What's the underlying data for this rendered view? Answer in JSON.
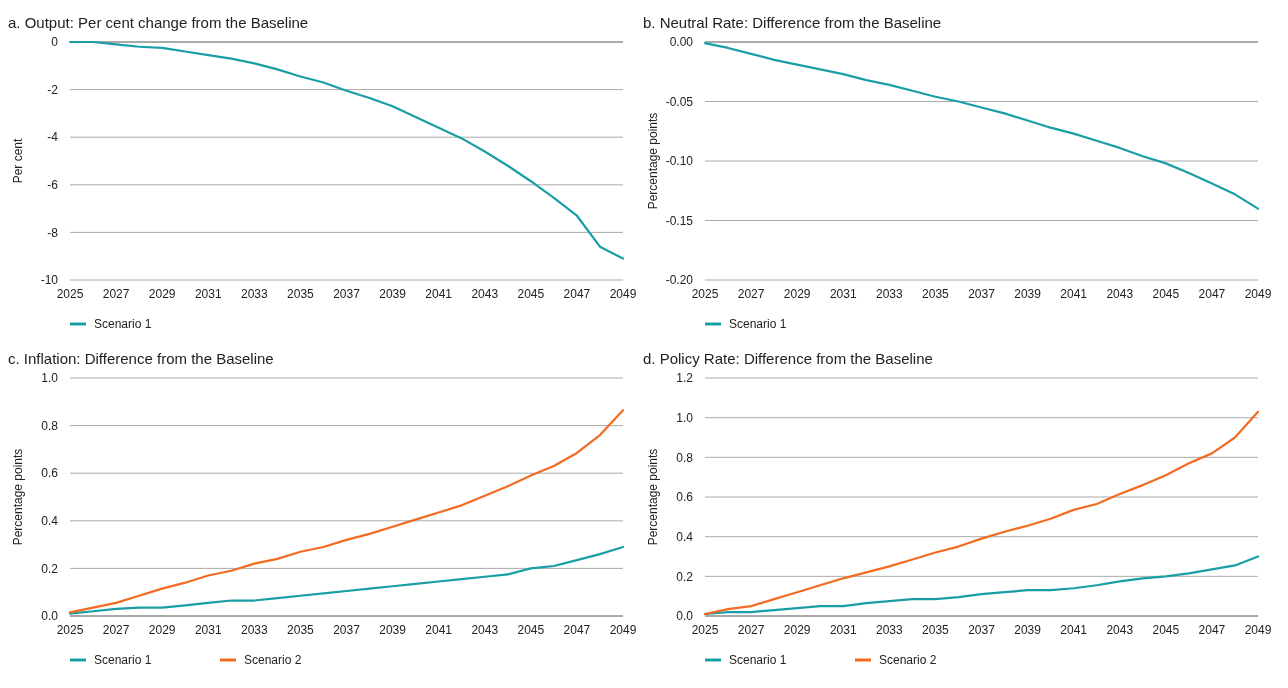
{
  "chart_data": [
    {
      "type": "line",
      "title": "a. Output: Per cent change from the Baseline",
      "ylabel": "Per cent",
      "x": [
        2025,
        2026,
        2027,
        2028,
        2029,
        2030,
        2031,
        2032,
        2033,
        2034,
        2035,
        2036,
        2037,
        2038,
        2039,
        2040,
        2041,
        2042,
        2043,
        2044,
        2045,
        2046,
        2047,
        2048,
        2049
      ],
      "xlim": [
        2025,
        2049
      ],
      "xticks": [
        2025,
        2027,
        2029,
        2031,
        2033,
        2035,
        2037,
        2039,
        2041,
        2043,
        2045,
        2047,
        2049
      ],
      "ylim": [
        -10,
        0
      ],
      "yticks": [
        -10,
        -8,
        -6,
        -4,
        -2,
        0
      ],
      "grid": "y",
      "legend": "bottom",
      "series": [
        {
          "name": "Scenario 1",
          "color": "#1a9ea6",
          "values": [
            0,
            0,
            -0.1,
            -0.2,
            -0.25,
            -0.4,
            -0.55,
            -0.7,
            -0.9,
            -1.15,
            -1.45,
            -1.7,
            -2.05,
            -2.35,
            -2.7,
            -3.15,
            -3.6,
            -4.05,
            -4.6,
            -5.2,
            -5.85,
            -6.55,
            -7.3,
            -8.6,
            -9.1
          ]
        }
      ]
    },
    {
      "type": "line",
      "title": "b. Neutral Rate: Difference from the Baseline",
      "ylabel": "Percentage points",
      "x": [
        2025,
        2026,
        2027,
        2028,
        2029,
        2030,
        2031,
        2032,
        2033,
        2034,
        2035,
        2036,
        2037,
        2038,
        2039,
        2040,
        2041,
        2042,
        2043,
        2044,
        2045,
        2046,
        2047,
        2048,
        2049
      ],
      "xlim": [
        2025,
        2049
      ],
      "xticks": [
        2025,
        2027,
        2029,
        2031,
        2033,
        2035,
        2037,
        2039,
        2041,
        2043,
        2045,
        2047,
        2049
      ],
      "ylim": [
        -0.2,
        0
      ],
      "yticks": [
        {
          "value": -0.2,
          "label": "-0.20"
        },
        {
          "value": -0.15,
          "label": "-0.15"
        },
        {
          "value": -0.1,
          "label": "-0.10"
        },
        {
          "value": -0.05,
          "label": "-0.05"
        },
        {
          "value": 0,
          "label": "0.00"
        }
      ],
      "grid": "y",
      "legend": "bottom",
      "series": [
        {
          "name": "Scenario 1",
          "color": "#1a9ea6",
          "values": [
            -0.001,
            -0.005,
            -0.01,
            -0.015,
            -0.019,
            -0.023,
            -0.027,
            -0.032,
            -0.036,
            -0.041,
            -0.046,
            -0.05,
            -0.055,
            -0.06,
            -0.066,
            -0.072,
            -0.077,
            -0.083,
            -0.089,
            -0.096,
            -0.102,
            -0.11,
            -0.119,
            -0.128,
            -0.14
          ]
        }
      ]
    },
    {
      "type": "line",
      "title": "c. Inflation: Difference from the Baseline",
      "ylabel": "Percentage points",
      "x": [
        2025,
        2026,
        2027,
        2028,
        2029,
        2030,
        2031,
        2032,
        2033,
        2034,
        2035,
        2036,
        2037,
        2038,
        2039,
        2040,
        2041,
        2042,
        2043,
        2044,
        2045,
        2046,
        2047,
        2048,
        2049
      ],
      "xlim": [
        2025,
        2049
      ],
      "xticks": [
        2025,
        2027,
        2029,
        2031,
        2033,
        2035,
        2037,
        2039,
        2041,
        2043,
        2045,
        2047,
        2049
      ],
      "ylim": [
        0,
        1
      ],
      "yticks": [
        {
          "value": 0,
          "label": "0.0"
        },
        0.2,
        0.4,
        0.6,
        0.8,
        {
          "value": 1,
          "label": "1.0"
        }
      ],
      "grid": "y",
      "legend": "bottom",
      "series": [
        {
          "name": "Scenario 1",
          "color": "#1a9ea6",
          "values": [
            0.01,
            0.02,
            0.03,
            0.035,
            0.035,
            0.045,
            0.055,
            0.065,
            0.065,
            0.075,
            0.085,
            0.095,
            0.105,
            0.115,
            0.125,
            0.135,
            0.145,
            0.155,
            0.165,
            0.175,
            0.2,
            0.21,
            0.235,
            0.26,
            0.29
          ]
        },
        {
          "name": "Scenario 2",
          "color": "#f26b21",
          "values": [
            0.015,
            0.035,
            0.055,
            0.085,
            0.115,
            0.14,
            0.17,
            0.19,
            0.22,
            0.24,
            0.27,
            0.29,
            0.32,
            0.345,
            0.375,
            0.405,
            0.435,
            0.465,
            0.505,
            0.545,
            0.59,
            0.63,
            0.685,
            0.76,
            0.865
          ]
        }
      ]
    },
    {
      "type": "line",
      "title": "d. Policy Rate: Difference from the Baseline",
      "ylabel": "Percentage points",
      "x": [
        2025,
        2026,
        2027,
        2028,
        2029,
        2030,
        2031,
        2032,
        2033,
        2034,
        2035,
        2036,
        2037,
        2038,
        2039,
        2040,
        2041,
        2042,
        2043,
        2044,
        2045,
        2046,
        2047,
        2048,
        2049
      ],
      "xlim": [
        2025,
        2049
      ],
      "xticks": [
        2025,
        2027,
        2029,
        2031,
        2033,
        2035,
        2037,
        2039,
        2041,
        2043,
        2045,
        2047,
        2049
      ],
      "ylim": [
        0,
        1.2
      ],
      "yticks": [
        {
          "value": 0,
          "label": "0.0"
        },
        0.2,
        0.4,
        0.6,
        0.8,
        {
          "value": 1,
          "label": "1.0"
        },
        1.2
      ],
      "grid": "y",
      "legend": "bottom",
      "series": [
        {
          "name": "Scenario 1",
          "color": "#1a9ea6",
          "values": [
            0.01,
            0.02,
            0.02,
            0.03,
            0.04,
            0.05,
            0.05,
            0.065,
            0.075,
            0.085,
            0.085,
            0.095,
            0.11,
            0.12,
            0.13,
            0.13,
            0.14,
            0.155,
            0.175,
            0.19,
            0.2,
            0.215,
            0.235,
            0.255,
            0.3
          ]
        },
        {
          "name": "Scenario 2",
          "color": "#f26b21",
          "values": [
            0.01,
            0.035,
            0.05,
            0.085,
            0.12,
            0.155,
            0.19,
            0.22,
            0.25,
            0.285,
            0.32,
            0.35,
            0.39,
            0.425,
            0.455,
            0.49,
            0.535,
            0.565,
            0.615,
            0.66,
            0.71,
            0.77,
            0.82,
            0.9,
            1.03
          ]
        }
      ]
    }
  ]
}
